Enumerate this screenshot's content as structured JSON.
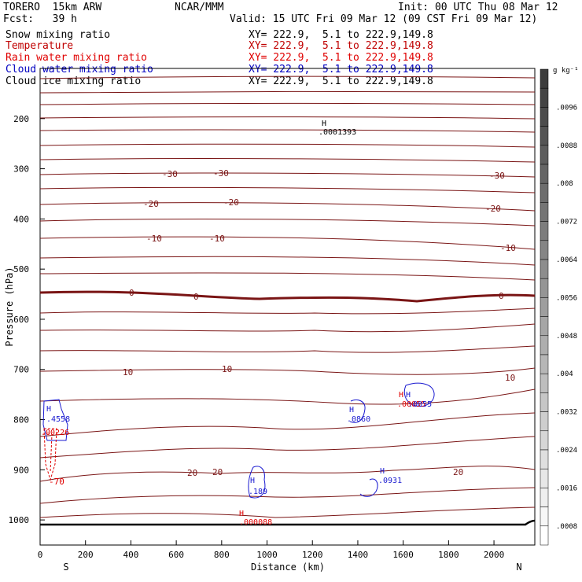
{
  "header": {
    "model": "TORERO  15km ARW",
    "org": "NCAR/MMM",
    "init": "Init: 00 UTC Thu 08 Mar 12",
    "fcst": "Fcst:   39 h",
    "valid": "Valid: 15 UTC Fri 09 Mar 12 (09 CST Fri 09 Mar 12)"
  },
  "fields": [
    {
      "name": "Snow mixing ratio",
      "xy": "XY= 222.9,  5.1 to 222.9,149.8",
      "color": "#000000"
    },
    {
      "name": "Temperature",
      "xy": "XY= 222.9,  5.1 to 222.9,149.8",
      "color": "#c00000"
    },
    {
      "name": "Rain water mixing ratio",
      "xy": "XY= 222.9,  5.1 to 222.9,149.8",
      "color": "#e00000"
    },
    {
      "name": "Cloud water mixing ratio",
      "xy": "XY= 222.9,  5.1 to 222.9,149.8",
      "color": "#0000c0"
    },
    {
      "name": "Cloud ice mixing ratio",
      "xy": "XY= 222.9,  5.1 to 222.9,149.8",
      "color": "#000000"
    }
  ],
  "chart_data": {
    "type": "line",
    "xlabel": "Distance (km)",
    "ylabel": "Pressure (hPa)",
    "xlim": [
      0,
      2180
    ],
    "ylim": [
      1050,
      100
    ],
    "x_ticks": [
      "0",
      "200",
      "400",
      "600",
      "800",
      "1000",
      "1200",
      "1400",
      "1600",
      "1800",
      "2000"
    ],
    "y_ticks": [
      "200",
      "300",
      "400",
      "500",
      "600",
      "700",
      "800",
      "900",
      "1000"
    ],
    "x_endpoints": [
      "S",
      "N"
    ],
    "colorbar": {
      "unit": "g kg⁻¹",
      "labels": [
        ".0096",
        ".0088",
        ".008",
        ".0072",
        ".0064",
        ".0056",
        ".0048",
        ".004",
        ".0032",
        ".0024",
        ".0016",
        ".0008"
      ]
    },
    "temperature_labels": [
      "-30",
      "-20",
      "-10",
      "0",
      "10",
      "20",
      "-70"
    ],
    "maxima": [
      {
        "label": "H",
        "value": ".0001393",
        "color": "#000000"
      },
      {
        "label": "H",
        "value": ".4558",
        "color": "#0000c0"
      },
      {
        "label": "H",
        "value": ".0860",
        "color": "#0000c0"
      },
      {
        "label": "H",
        "value": ".189",
        "color": "#0000c0"
      },
      {
        "label": "H",
        "value": ".0931",
        "color": "#0000c0"
      },
      {
        "label": "H",
        "value": ".00055",
        "color": "#e00000"
      },
      {
        "label": "H",
        "value": ".00226",
        "color": "#e00000"
      },
      {
        "label": "H",
        "value": ".000088",
        "color": "#e00000"
      },
      {
        "label": "H",
        "value": ".0055",
        "color": "#0000c0"
      }
    ]
  }
}
